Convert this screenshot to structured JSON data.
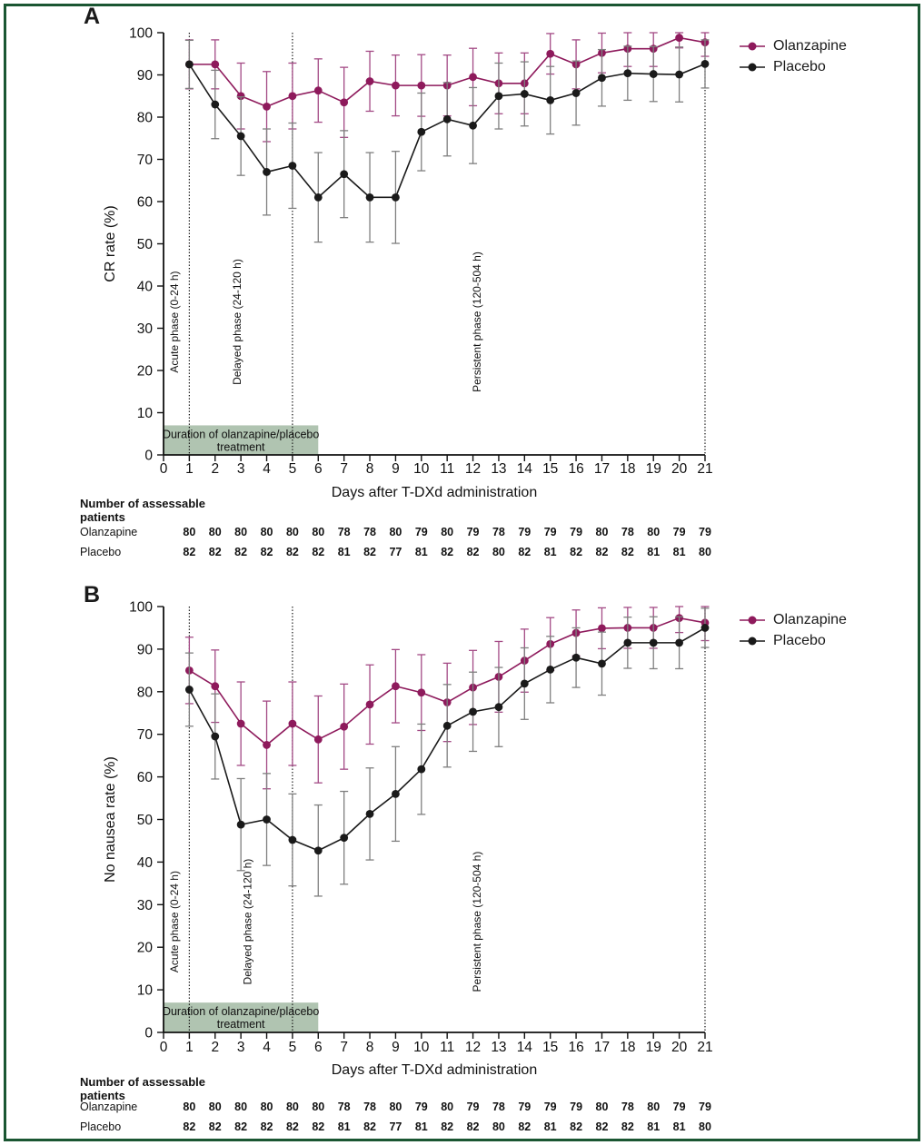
{
  "figure": {
    "panel_a_label": "A",
    "panel_b_label": "B",
    "frame_color": "#1a5632",
    "background": "#ffffff"
  },
  "legend": {
    "items": [
      {
        "label": "Olanzapine",
        "color": "#8e1a5c"
      },
      {
        "label": "Placebo",
        "color": "#1a1a1a"
      }
    ]
  },
  "assessable_patients": {
    "header_line1": "Number of assessable",
    "header_line2": "patients",
    "rows": [
      {
        "label": "Olanzapine",
        "values": [
          80,
          80,
          80,
          80,
          80,
          80,
          78,
          78,
          80,
          79,
          80,
          79,
          78,
          79,
          79,
          79,
          80,
          78,
          80,
          79,
          79
        ]
      },
      {
        "label": "Placebo",
        "values": [
          82,
          82,
          82,
          82,
          82,
          82,
          81,
          82,
          77,
          81,
          82,
          82,
          80,
          82,
          81,
          82,
          82,
          82,
          81,
          81,
          80
        ]
      }
    ]
  },
  "chart_data": [
    {
      "panel": "A",
      "type": "line",
      "xlabel": "Days after T-DXd administration",
      "ylabel": "CR rate (%)",
      "ylim": [
        0,
        100
      ],
      "yticks": [
        0,
        10,
        20,
        30,
        40,
        50,
        60,
        70,
        80,
        90,
        100
      ],
      "xticks": [
        0,
        1,
        2,
        3,
        4,
        5,
        6,
        7,
        8,
        9,
        10,
        11,
        12,
        13,
        14,
        15,
        16,
        17,
        18,
        19,
        20,
        21
      ],
      "x": [
        1,
        2,
        3,
        4,
        5,
        6,
        7,
        8,
        9,
        10,
        11,
        12,
        13,
        14,
        15,
        16,
        17,
        18,
        19,
        20,
        21
      ],
      "series": [
        {
          "name": "Olanzapine",
          "color": "#8e1a5c",
          "err_color": "#a34a85",
          "values": [
            92.5,
            92.5,
            85.0,
            82.5,
            85.0,
            86.3,
            83.5,
            88.5,
            87.5,
            87.5,
            87.5,
            89.5,
            88.0,
            88.0,
            95.0,
            92.5,
            95.2,
            96.2,
            96.2,
            98.8,
            97.7
          ],
          "ci_half": [
            5.8,
            5.8,
            7.8,
            8.3,
            7.8,
            7.5,
            8.3,
            7.1,
            7.2,
            7.3,
            7.2,
            6.8,
            7.2,
            7.2,
            4.8,
            5.8,
            4.7,
            4.2,
            4.2,
            2.4,
            3.3
          ]
        },
        {
          "name": "Placebo",
          "color": "#1a1a1a",
          "err_color": "#7f7f7f",
          "values": [
            92.5,
            83.0,
            75.5,
            67.0,
            68.5,
            61.0,
            66.5,
            61.0,
            61.0,
            76.5,
            79.5,
            78.0,
            85.0,
            85.5,
            84.0,
            85.7,
            89.3,
            90.4,
            90.2,
            90.1,
            92.6
          ],
          "ci_half": [
            5.7,
            8.1,
            9.3,
            10.2,
            10.1,
            10.6,
            10.3,
            10.6,
            10.9,
            9.2,
            8.7,
            9.0,
            7.8,
            7.6,
            8.0,
            7.6,
            6.7,
            6.4,
            6.5,
            6.5,
            5.7
          ]
        }
      ],
      "phase_boundary_days": [
        1,
        5,
        21
      ],
      "phase_labels": [
        "Acute phase (0-24 h)",
        "Delayed phase (24-120 h)",
        "Persistent phase (120-504 h)"
      ],
      "treatment_box": {
        "label_line1": "Duration of olanzapine/placebo",
        "label_line2": "treatment",
        "x_range": [
          0,
          6
        ],
        "color": "#b0c4b1"
      }
    },
    {
      "panel": "B",
      "type": "line",
      "xlabel": "Days after T-DXd administration",
      "ylabel": "No nausea rate (%)",
      "ylim": [
        0,
        100
      ],
      "yticks": [
        0,
        10,
        20,
        30,
        40,
        50,
        60,
        70,
        80,
        90,
        100
      ],
      "xticks": [
        0,
        1,
        2,
        3,
        4,
        5,
        6,
        7,
        8,
        9,
        10,
        11,
        12,
        13,
        14,
        15,
        16,
        17,
        18,
        19,
        20,
        21
      ],
      "x": [
        1,
        2,
        3,
        4,
        5,
        6,
        7,
        8,
        9,
        10,
        11,
        12,
        13,
        14,
        15,
        16,
        17,
        18,
        19,
        20,
        21
      ],
      "series": [
        {
          "name": "Olanzapine",
          "color": "#8e1a5c",
          "err_color": "#a34a85",
          "values": [
            85.0,
            81.3,
            72.5,
            67.5,
            72.5,
            68.8,
            71.8,
            77.0,
            81.3,
            79.8,
            77.5,
            81.0,
            83.5,
            87.3,
            91.2,
            93.8,
            94.9,
            95.0,
            95.0,
            97.3,
            96.2
          ],
          "ci_half": [
            7.8,
            8.5,
            9.8,
            10.3,
            9.8,
            10.2,
            10.0,
            9.3,
            8.6,
            8.9,
            9.2,
            8.7,
            8.3,
            7.4,
            6.2,
            5.4,
            4.8,
            4.8,
            4.8,
            3.4,
            4.2
          ]
        },
        {
          "name": "Placebo",
          "color": "#1a1a1a",
          "err_color": "#7f7f7f",
          "values": [
            80.5,
            69.5,
            48.8,
            50.0,
            45.2,
            42.7,
            45.7,
            51.3,
            56.0,
            61.8,
            72.0,
            75.3,
            76.4,
            81.9,
            85.2,
            88.0,
            86.6,
            91.5,
            91.5,
            91.5,
            95.0
          ],
          "ci_half": [
            8.6,
            10.0,
            10.8,
            10.8,
            10.8,
            10.7,
            10.9,
            10.8,
            11.1,
            10.6,
            9.7,
            9.3,
            9.3,
            8.4,
            7.8,
            7.0,
            7.4,
            6.0,
            6.1,
            6.1,
            4.6
          ]
        }
      ],
      "phase_boundary_days": [
        1,
        5,
        21
      ],
      "phase_labels": [
        "Acute phase (0-24 h)",
        "Delayed phase (24-120 h)",
        "Persistent phase (120-504 h)"
      ],
      "treatment_box": {
        "label_line1": "Duration of olanzapine/placebo",
        "label_line2": "treatment",
        "x_range": [
          0,
          6
        ],
        "color": "#b0c4b1"
      }
    }
  ]
}
